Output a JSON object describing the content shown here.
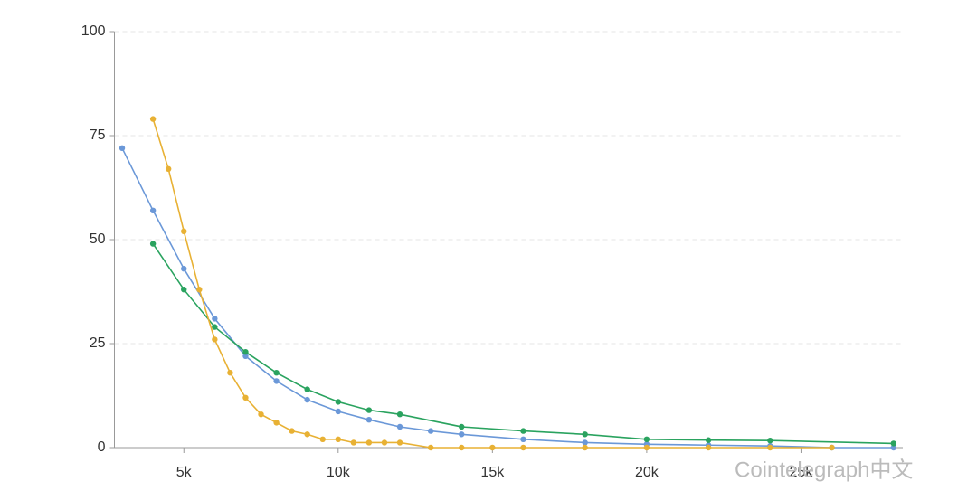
{
  "chart_data": {
    "type": "line",
    "xlim": [
      2750,
      28300
    ],
    "xticks": [
      {
        "value": 5000,
        "label": "5k"
      },
      {
        "value": 10000,
        "label": "10k"
      },
      {
        "value": 15000,
        "label": "15k"
      },
      {
        "value": 20000,
        "label": "20k"
      },
      {
        "value": 25000,
        "label": "25k"
      }
    ],
    "ylim": [
      0,
      100
    ],
    "yticks": [
      0,
      25,
      50,
      75,
      100
    ],
    "grid": true,
    "watermark": "Cointelegraph中文",
    "series": [
      {
        "color": "#6b98d8",
        "x": [
          3000,
          4000,
          5000,
          6000,
          7000,
          8000,
          9000,
          10000,
          11000,
          12000,
          13000,
          14000,
          16000,
          18000,
          20000,
          22000,
          24000,
          26000,
          28000
        ],
        "values": [
          72,
          57,
          43,
          31,
          22,
          16,
          11.5,
          8.7,
          6.7,
          5,
          4,
          3.2,
          2,
          1.2,
          0.8,
          0.6,
          0.4,
          0,
          0
        ]
      },
      {
        "color": "#2aa35f",
        "x": [
          4000,
          5000,
          6000,
          7000,
          8000,
          9000,
          10000,
          11000,
          12000,
          14000,
          16000,
          18000,
          20000,
          22000,
          24000,
          28000
        ],
        "values": [
          49,
          38,
          29,
          23,
          18,
          14,
          11,
          9,
          8,
          5,
          4,
          3.2,
          2,
          1.8,
          1.7,
          1
        ]
      },
      {
        "color": "#e8b134",
        "x": [
          4000,
          4500,
          5000,
          5500,
          6000,
          6500,
          7000,
          7500,
          8000,
          8500,
          9000,
          9500,
          10000,
          10500,
          11000,
          11500,
          12000,
          13000,
          14000,
          15000,
          16000,
          18000,
          20000,
          22000,
          24000,
          26000
        ],
        "values": [
          79,
          67,
          52,
          38,
          26,
          18,
          12,
          8,
          6,
          4,
          3.2,
          2,
          2,
          1.2,
          1.2,
          1.2,
          1.2,
          0,
          0,
          0,
          0,
          0,
          0,
          0,
          0,
          0
        ]
      }
    ]
  }
}
